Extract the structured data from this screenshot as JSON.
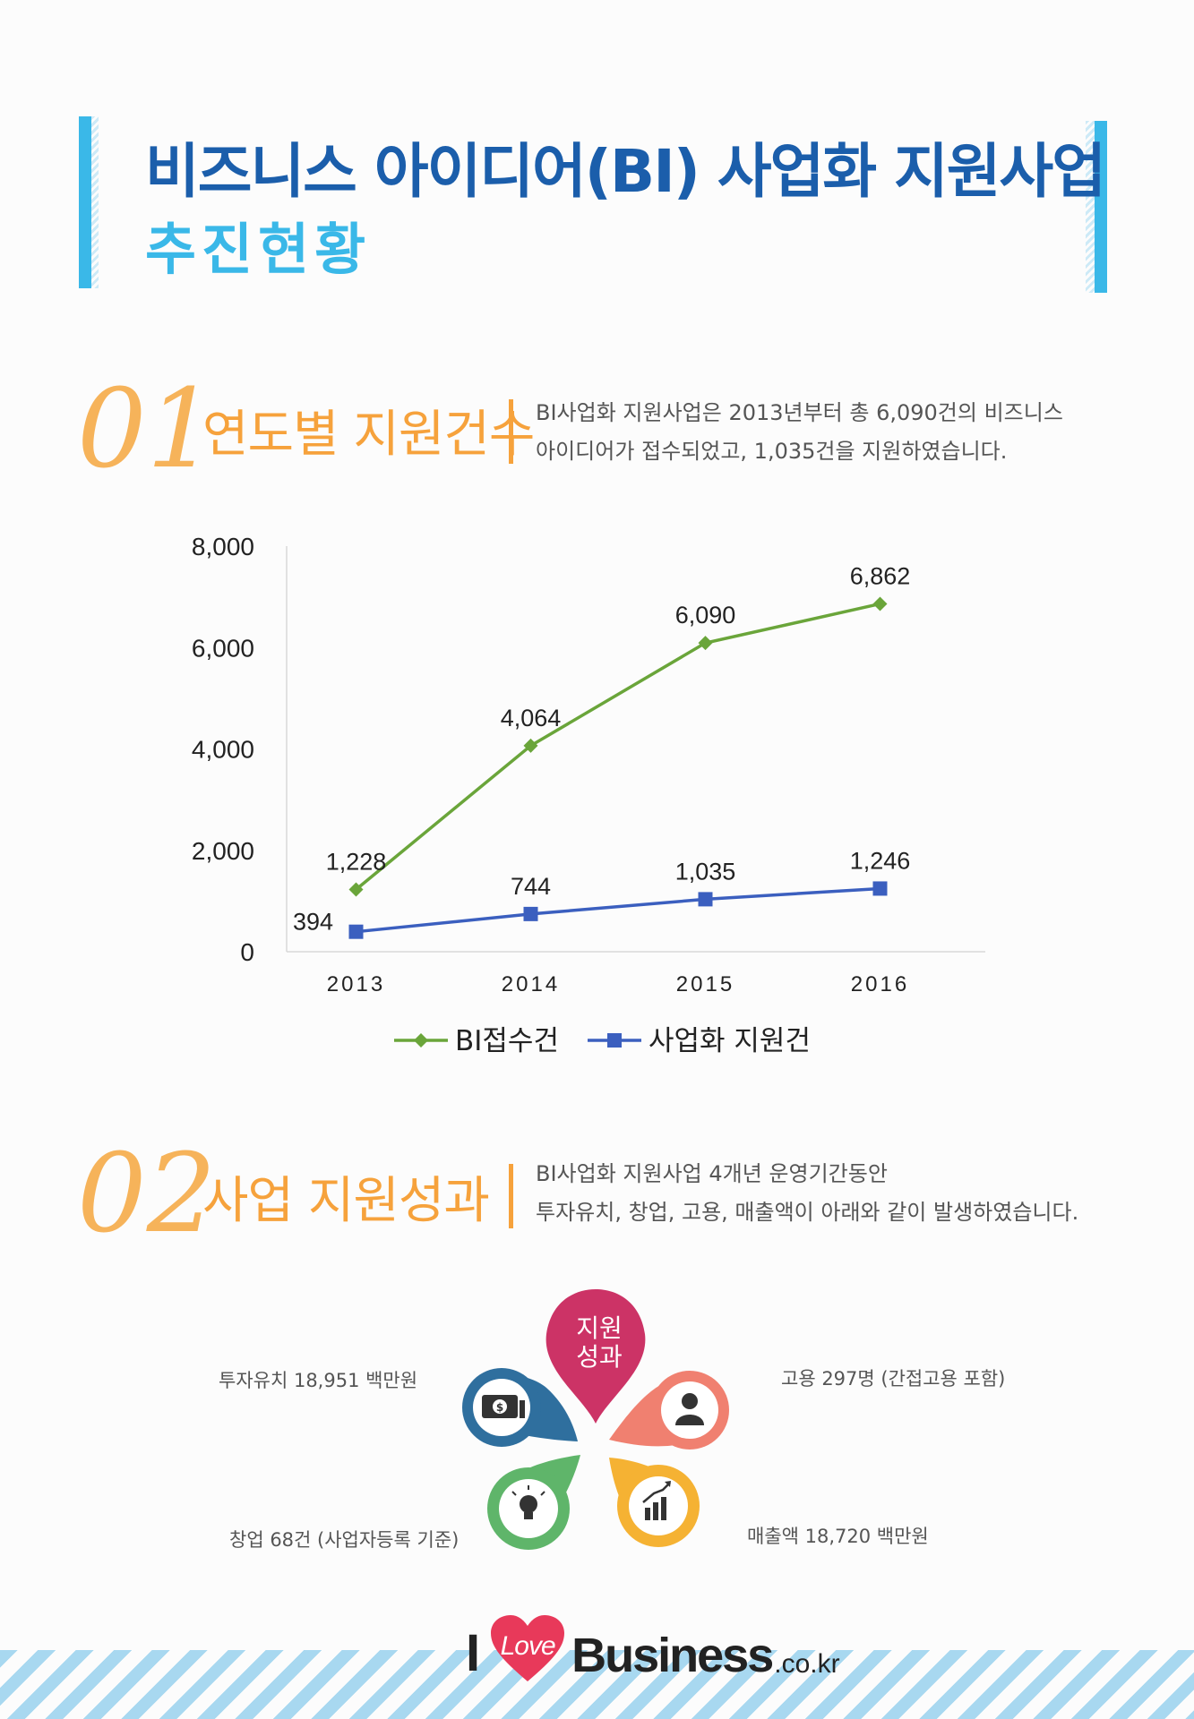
{
  "title": {
    "main": "비즈니스 아이디어(BI) 사업화 지원사업",
    "sub": "추진현황"
  },
  "section1": {
    "number": "01",
    "title": "연도별 지원건수",
    "desc_line1": "BI사업화 지원사업은 2013년부터 총 6,090건의 비즈니스",
    "desc_line2": "아이디어가 접수되었고, 1,035건을 지원하였습니다."
  },
  "chart_data": {
    "type": "line",
    "categories": [
      "2013",
      "2014",
      "2015",
      "2016"
    ],
    "series": [
      {
        "name": "BI접수건",
        "values": [
          1228,
          4064,
          6090,
          6862
        ],
        "labels": [
          "1,228",
          "4,064",
          "6,090",
          "6,862"
        ],
        "color": "#6aa53a",
        "marker": "diamond"
      },
      {
        "name": "사업화 지원건",
        "values": [
          394,
          744,
          1035,
          1246
        ],
        "labels": [
          "394",
          "744",
          "1,035",
          "1,246"
        ],
        "color": "#3b5fbf",
        "marker": "square"
      }
    ],
    "ylim": [
      0,
      8000
    ],
    "yticks": [
      0,
      2000,
      4000,
      6000,
      8000
    ],
    "ytick_labels": [
      "0",
      "2,000",
      "4,000",
      "6,000",
      "8,000"
    ],
    "legend_position": "bottom",
    "grid": false
  },
  "section2": {
    "number": "02",
    "title": "사업 지원성과",
    "desc_line1": "BI사업화 지원사업 4개년 운영기간동안",
    "desc_line2": "투자유치, 창업, 고용, 매출액이 아래와 같이 발생하였습니다."
  },
  "performance": {
    "center_line1": "지원",
    "center_line2": "성과",
    "investment": "투자유치 18,951 백만원",
    "employment": "고용 297명 (간접고용 포함)",
    "startup": "창업 68건 (사업자등록 기준)",
    "sales": "매출액 18,720 백만원",
    "colors": {
      "center": "#cc3366",
      "investment": "#2f6f9e",
      "employment": "#f08070",
      "startup": "#5fb56a",
      "sales": "#f5b233"
    }
  },
  "footer": {
    "logo_i": "I",
    "logo_heart": "Love",
    "logo_business": "Business",
    "logo_domain": ".co.kr"
  }
}
